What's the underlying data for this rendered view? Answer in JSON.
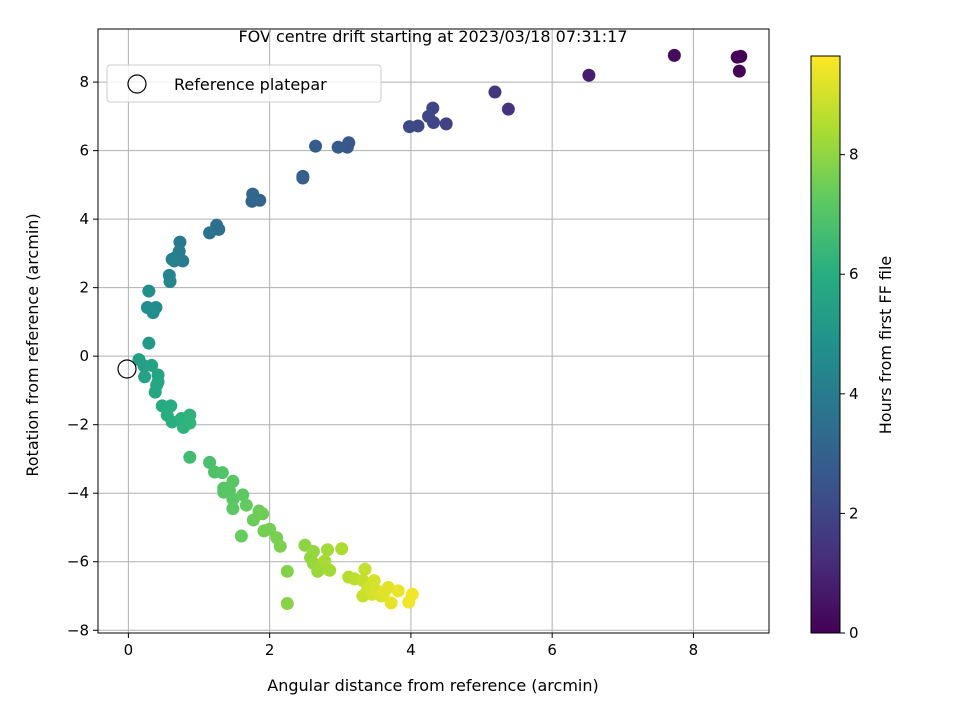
{
  "chart_data": {
    "type": "scatter",
    "title": "FOV centre drift starting at 2023/03/18 07:31:17",
    "xlabel": "Angular distance from reference (arcmin)",
    "ylabel": "Rotation from reference (arcmin)",
    "xlim": [
      -0.43,
      9.07
    ],
    "ylim": [
      -8.08,
      9.55
    ],
    "xticks": [
      0,
      2,
      4,
      6,
      8
    ],
    "xtick_labels": [
      "0",
      "2",
      "4",
      "6",
      "8"
    ],
    "yticks": [
      -8,
      -6,
      -4,
      -2,
      0,
      2,
      4,
      6,
      8
    ],
    "ytick_labels": [
      "−8",
      "−6",
      "−4",
      "−2",
      "0",
      "2",
      "4",
      "6",
      "8"
    ],
    "grid": true,
    "legend": {
      "location": "upper-left",
      "entries": [
        "Reference platepar"
      ]
    },
    "reference_point": {
      "x": 0,
      "y": 0,
      "label": "Reference platepar",
      "marker": "open-circle"
    },
    "colorbar": {
      "label": "Hours from first FF file",
      "colormap": "viridis",
      "range": [
        0,
        9.65
      ],
      "ticks": [
        0,
        2,
        4,
        6,
        8
      ],
      "tick_labels": [
        "0",
        "2",
        "4",
        "6",
        "8"
      ]
    },
    "points": [
      [
        8.67,
        8.75,
        0.0
      ],
      [
        8.62,
        8.73,
        0.05
      ],
      [
        8.65,
        8.32,
        0.1
      ],
      [
        7.73,
        8.78,
        0.3
      ],
      [
        6.52,
        8.2,
        0.8
      ],
      [
        5.38,
        7.21,
        1.4
      ],
      [
        5.19,
        7.71,
        1.5
      ],
      [
        4.5,
        6.78,
        1.9
      ],
      [
        4.32,
        6.82,
        2.0
      ],
      [
        4.31,
        7.24,
        2.0
      ],
      [
        4.25,
        7.0,
        2.05
      ],
      [
        4.1,
        6.72,
        2.1
      ],
      [
        3.98,
        6.7,
        2.15
      ],
      [
        3.12,
        6.23,
        2.6
      ],
      [
        3.1,
        6.1,
        2.65
      ],
      [
        2.97,
        6.1,
        2.7
      ],
      [
        2.65,
        6.13,
        2.8
      ],
      [
        2.47,
        5.25,
        2.9
      ],
      [
        2.47,
        5.2,
        2.9
      ],
      [
        1.86,
        4.55,
        3.1
      ],
      [
        1.76,
        4.73,
        3.15
      ],
      [
        1.75,
        4.52,
        3.2
      ],
      [
        1.25,
        3.82,
        3.5
      ],
      [
        1.28,
        3.7,
        3.55
      ],
      [
        1.15,
        3.6,
        3.6
      ],
      [
        0.73,
        3.33,
        3.9
      ],
      [
        0.77,
        2.78,
        3.95
      ],
      [
        0.72,
        3.06,
        4.0
      ],
      [
        0.68,
        2.9,
        4.05
      ],
      [
        0.65,
        2.78,
        4.1
      ],
      [
        0.62,
        2.83,
        4.15
      ],
      [
        0.58,
        2.36,
        4.3
      ],
      [
        0.59,
        2.18,
        4.35
      ],
      [
        0.39,
        1.42,
        4.6
      ],
      [
        0.29,
        1.9,
        4.7
      ],
      [
        0.35,
        1.27,
        4.75
      ],
      [
        0.27,
        1.42,
        4.8
      ],
      [
        0.29,
        0.38,
        5.2
      ],
      [
        0.15,
        -0.1,
        5.4
      ],
      [
        0.22,
        -0.28,
        5.45
      ],
      [
        0.23,
        -0.6,
        5.5
      ],
      [
        0.33,
        -0.27,
        5.55
      ],
      [
        0.42,
        -0.55,
        5.6
      ],
      [
        0.42,
        -0.75,
        5.65
      ],
      [
        0.4,
        -0.85,
        5.7
      ],
      [
        0.38,
        -1.05,
        5.75
      ],
      [
        0.48,
        -1.45,
        5.9
      ],
      [
        0.6,
        -1.45,
        5.95
      ],
      [
        0.55,
        -1.72,
        6.0
      ],
      [
        0.62,
        -1.92,
        6.05
      ],
      [
        0.75,
        -1.82,
        6.1
      ],
      [
        0.78,
        -2.08,
        6.15
      ],
      [
        0.87,
        -1.72,
        6.2
      ],
      [
        0.87,
        -1.95,
        6.25
      ],
      [
        0.87,
        -2.95,
        6.6
      ],
      [
        1.15,
        -3.1,
        6.8
      ],
      [
        1.22,
        -3.38,
        6.9
      ],
      [
        1.33,
        -3.4,
        6.95
      ],
      [
        1.35,
        -3.85,
        7.0
      ],
      [
        1.35,
        -3.97,
        7.05
      ],
      [
        1.48,
        -3.65,
        7.1
      ],
      [
        1.43,
        -3.92,
        7.1
      ],
      [
        1.48,
        -4.18,
        7.15
      ],
      [
        1.48,
        -4.45,
        7.2
      ],
      [
        1.62,
        -4.05,
        7.25
      ],
      [
        1.67,
        -4.35,
        7.3
      ],
      [
        1.6,
        -5.25,
        7.35
      ],
      [
        1.77,
        -4.78,
        7.4
      ],
      [
        1.85,
        -4.52,
        7.45
      ],
      [
        1.9,
        -4.6,
        7.5
      ],
      [
        1.92,
        -5.1,
        7.55
      ],
      [
        2.0,
        -5.05,
        7.6
      ],
      [
        2.1,
        -5.3,
        7.65
      ],
      [
        2.15,
        -5.55,
        7.7
      ],
      [
        2.25,
        -6.28,
        7.8
      ],
      [
        2.25,
        -7.22,
        7.85
      ],
      [
        2.5,
        -5.52,
        7.95
      ],
      [
        2.58,
        -5.88,
        8.0
      ],
      [
        2.62,
        -5.7,
        8.05
      ],
      [
        2.62,
        -6.05,
        8.1
      ],
      [
        2.68,
        -6.28,
        8.15
      ],
      [
        2.72,
        -6.1,
        8.2
      ],
      [
        2.82,
        -5.65,
        8.25
      ],
      [
        2.85,
        -6.25,
        8.3
      ],
      [
        2.78,
        -5.98,
        8.35
      ],
      [
        3.02,
        -5.62,
        8.45
      ],
      [
        3.12,
        -6.45,
        8.55
      ],
      [
        3.2,
        -6.5,
        8.65
      ],
      [
        3.32,
        -6.55,
        8.75
      ],
      [
        3.35,
        -6.22,
        8.8
      ],
      [
        3.32,
        -7.0,
        8.85
      ],
      [
        3.38,
        -6.85,
        8.9
      ],
      [
        3.42,
        -6.72,
        8.95
      ],
      [
        3.45,
        -6.95,
        9.0
      ],
      [
        3.48,
        -6.55,
        9.05
      ],
      [
        3.52,
        -6.85,
        9.1
      ],
      [
        3.58,
        -7.0,
        9.15
      ],
      [
        3.62,
        -6.9,
        9.2
      ],
      [
        3.68,
        -6.75,
        9.25
      ],
      [
        3.72,
        -7.2,
        9.3
      ],
      [
        3.82,
        -6.85,
        9.35
      ],
      [
        3.97,
        -7.18,
        9.45
      ],
      [
        4.02,
        -6.95,
        9.5
      ]
    ]
  }
}
